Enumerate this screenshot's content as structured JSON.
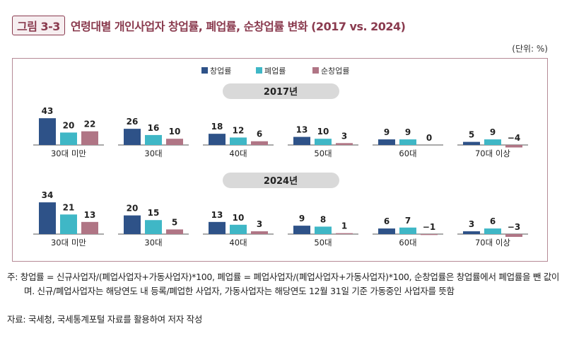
{
  "header": {
    "figure_label": "그림 3-3",
    "title": "연령대별 개인사업자 창업률, 폐업률, 순창업률 변화 (2017 vs. 2024)",
    "unit": "(단위: %)"
  },
  "chart_data": [
    {
      "type": "bar",
      "title": "2017년",
      "categories": [
        "30대 미만",
        "30대",
        "40대",
        "50대",
        "60대",
        "70대 이상"
      ],
      "series": [
        {
          "name": "창업률",
          "color": "#2e5288",
          "values": [
            43,
            26,
            18,
            13,
            9,
            5
          ]
        },
        {
          "name": "폐업률",
          "color": "#3fb7c6",
          "values": [
            20,
            16,
            12,
            10,
            9,
            9
          ]
        },
        {
          "name": "순창업률",
          "color": "#b07585",
          "values": [
            22,
            10,
            6,
            3,
            0,
            -4
          ]
        }
      ],
      "legend": "top-center",
      "grid": false
    },
    {
      "type": "bar",
      "title": "2024년",
      "categories": [
        "30대 미만",
        "30대",
        "40대",
        "50대",
        "60대",
        "70대 이상"
      ],
      "series": [
        {
          "name": "창업률",
          "color": "#2e5288",
          "values": [
            34,
            20,
            13,
            9,
            6,
            3
          ]
        },
        {
          "name": "폐업률",
          "color": "#3fb7c6",
          "values": [
            21,
            15,
            10,
            8,
            7,
            6
          ]
        },
        {
          "name": "순창업률",
          "color": "#b07585",
          "values": [
            13,
            5,
            3,
            1,
            -1,
            -3
          ]
        }
      ],
      "legend": "top-center",
      "grid": false
    }
  ],
  "footer": {
    "note": "주: 창업률 = 신규사업자/(폐업사업자+가동사업자)*100, 폐업률 = 폐업사업자/(폐업사업자+가동사업자)*100, 순창업률은 창업률에서 폐업률을 뺀 값이며. 신규/폐업사업자는 해당연도 내 등록/폐업한 사업자, 가동사업자는 해당연도 12월 31일 기준 가동중인 사업자를 뜻함",
    "source": "자료: 국세청, 국세통계포털 자료를 활용하여 저자 작성"
  }
}
